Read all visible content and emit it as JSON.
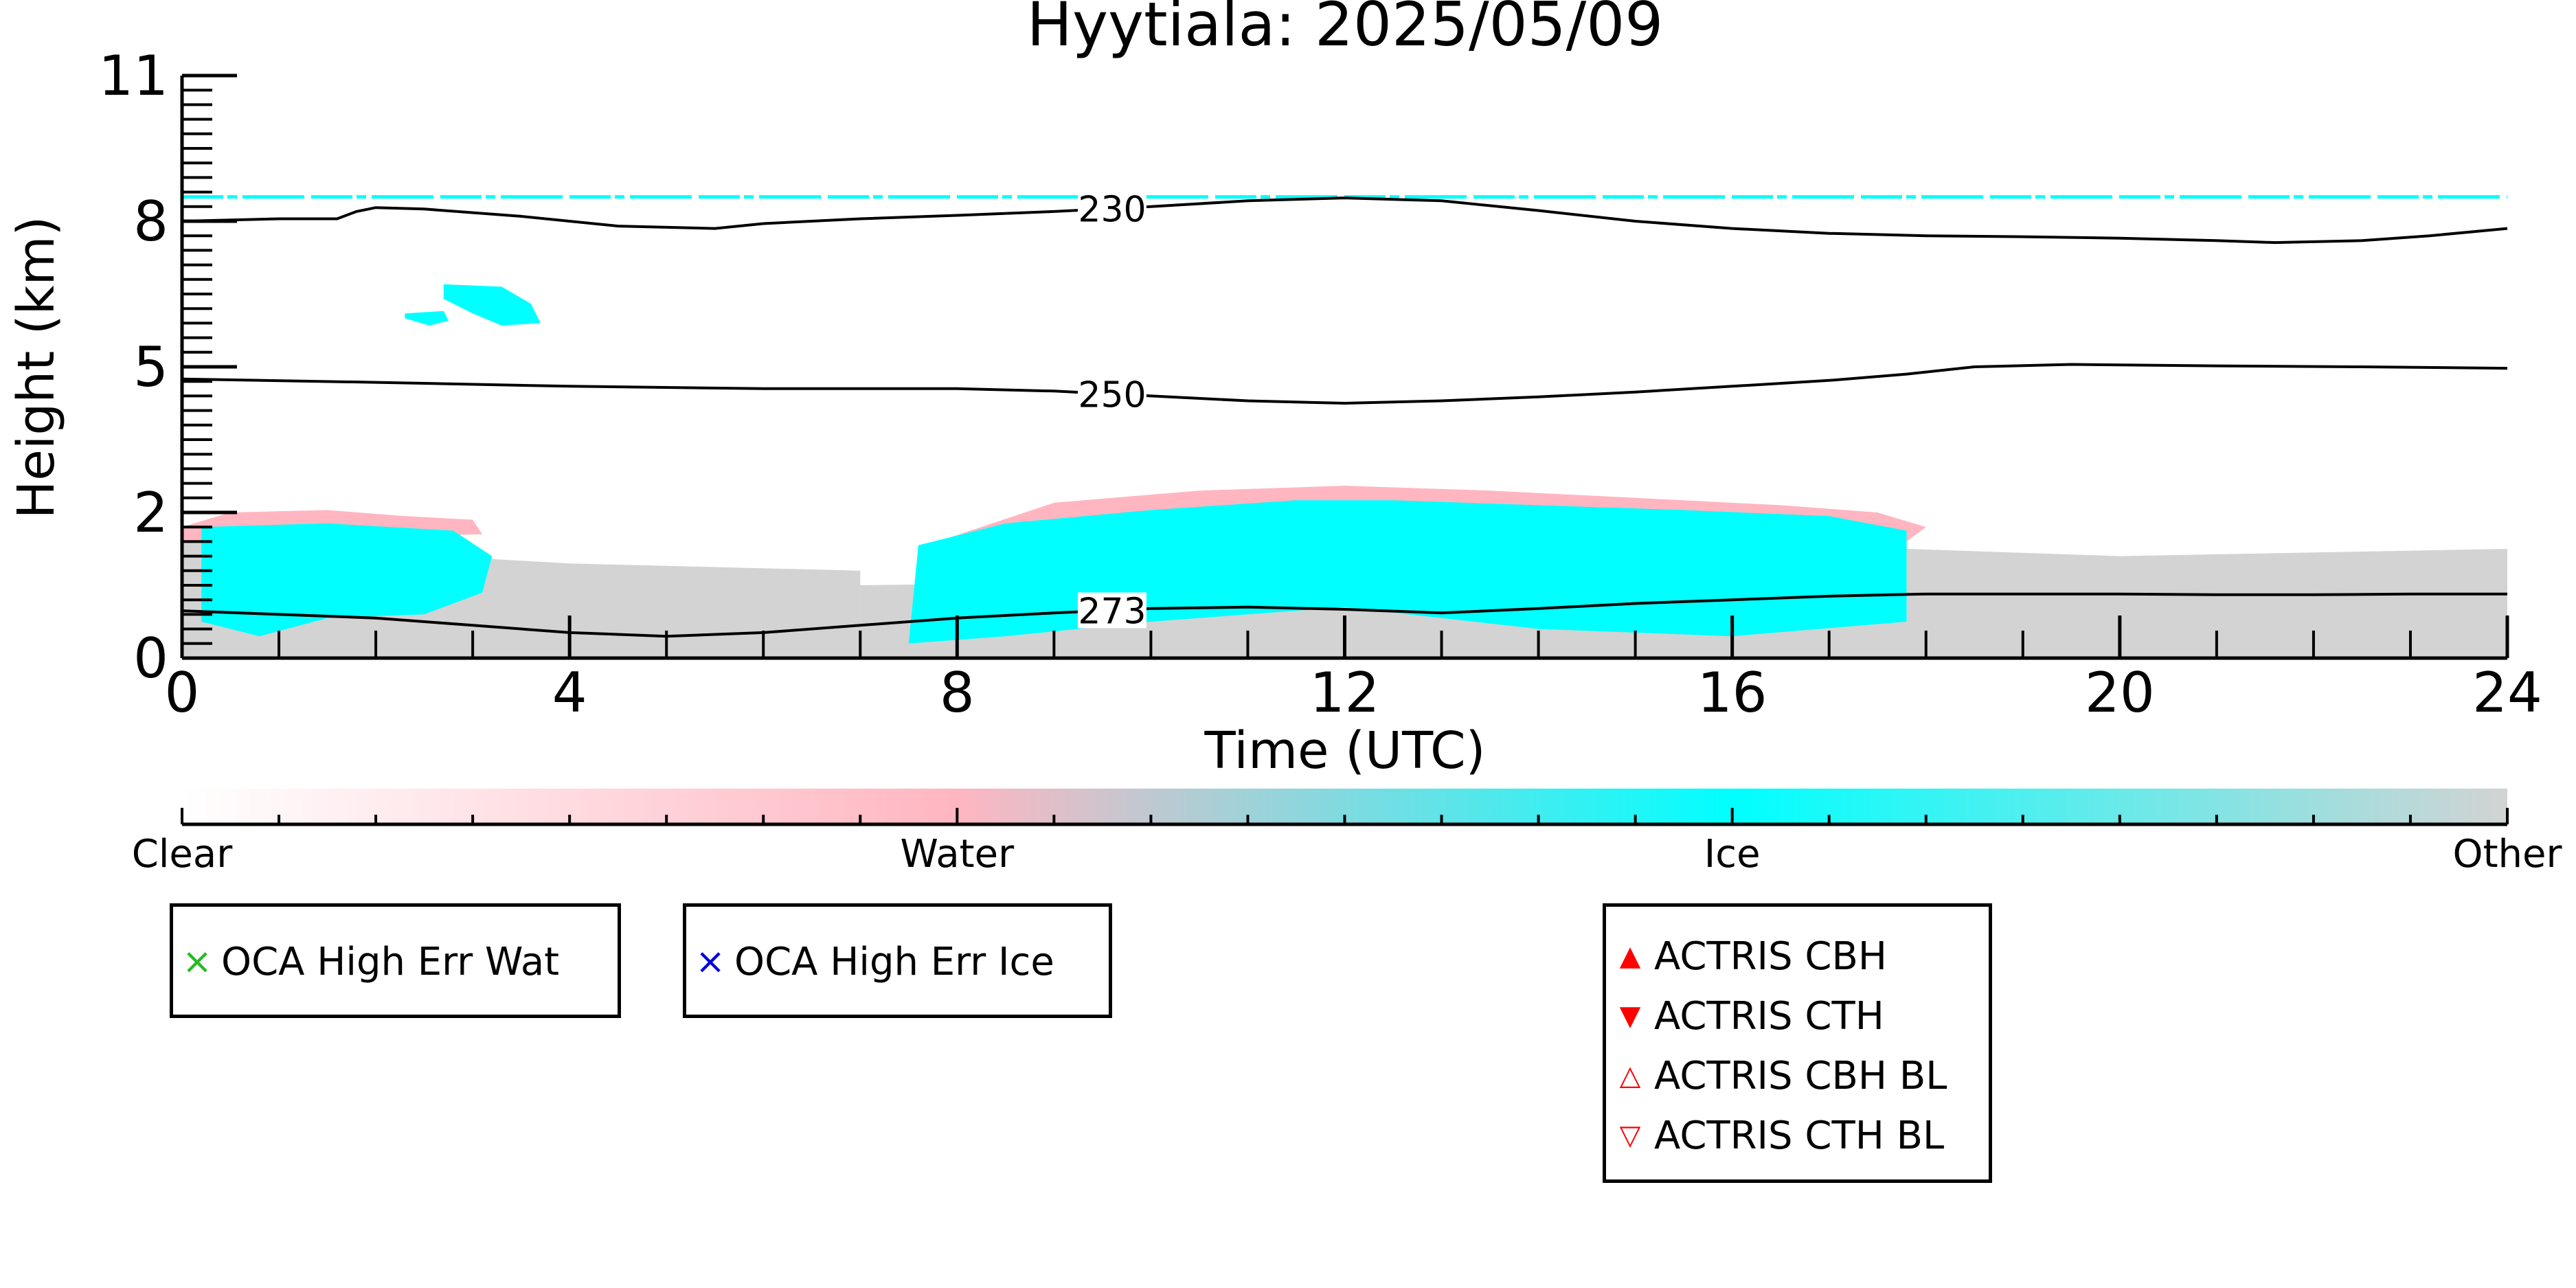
{
  "chart_data": {
    "type": "heatmap",
    "title": "Hyytiala: 2025/05/09",
    "xlabel": "Time (UTC)",
    "ylabel": "Height (km)",
    "xlim": [
      0,
      24
    ],
    "ylim": [
      0,
      11
    ],
    "x_ticks": [
      0,
      4,
      8,
      12,
      16,
      20,
      24
    ],
    "y_ticks": [
      {
        "value": 0,
        "label": "0"
      },
      {
        "value": 2,
        "label": "2"
      },
      {
        "value": 5,
        "label": "5"
      },
      {
        "value": 8,
        "label": "8"
      },
      {
        "value": 11,
        "label": "11"
      }
    ],
    "y_scale_note": "non-linear axis (0,2,5,8,11 equally spaced)",
    "colorbar": {
      "labels": [
        "Clear",
        "Water",
        "Ice",
        "Other"
      ],
      "colors": [
        "#ffffff",
        "#ffb6c1",
        "#00ffff",
        "#d3d3d3"
      ]
    },
    "temperature_contours": [
      {
        "label": "230",
        "label_x": 9.6,
        "points": [
          [
            0,
            8.0
          ],
          [
            1.0,
            8.05
          ],
          [
            1.6,
            8.05
          ],
          [
            1.8,
            8.2
          ],
          [
            2.0,
            8.28
          ],
          [
            2.5,
            8.25
          ],
          [
            3.5,
            8.1
          ],
          [
            4.5,
            7.9
          ],
          [
            5.5,
            7.85
          ],
          [
            6.0,
            7.95
          ],
          [
            7.0,
            8.05
          ],
          [
            8.0,
            8.12
          ],
          [
            9.0,
            8.2
          ],
          [
            10.0,
            8.3
          ],
          [
            11.0,
            8.42
          ],
          [
            12.0,
            8.48
          ],
          [
            13.0,
            8.42
          ],
          [
            14.0,
            8.22
          ],
          [
            15.0,
            8.0
          ],
          [
            16.0,
            7.85
          ],
          [
            17.0,
            7.75
          ],
          [
            18.0,
            7.7
          ],
          [
            19.0,
            7.68
          ],
          [
            20.0,
            7.65
          ],
          [
            21.0,
            7.6
          ],
          [
            21.6,
            7.56
          ],
          [
            22.5,
            7.6
          ],
          [
            23.2,
            7.7
          ],
          [
            24,
            7.85
          ]
        ]
      },
      {
        "label": "250",
        "label_x": 9.6,
        "points": [
          [
            0,
            4.75
          ],
          [
            2,
            4.68
          ],
          [
            4,
            4.6
          ],
          [
            6,
            4.55
          ],
          [
            8,
            4.55
          ],
          [
            9,
            4.5
          ],
          [
            10,
            4.4
          ],
          [
            11,
            4.3
          ],
          [
            12,
            4.25
          ],
          [
            13,
            4.3
          ],
          [
            14,
            4.38
          ],
          [
            15,
            4.48
          ],
          [
            16,
            4.6
          ],
          [
            17,
            4.72
          ],
          [
            17.8,
            4.85
          ],
          [
            18.5,
            5.0
          ],
          [
            19.5,
            5.05
          ],
          [
            21,
            5.02
          ],
          [
            22.5,
            5.0
          ],
          [
            24,
            4.97
          ]
        ]
      },
      {
        "label": "273",
        "label_x": 9.6,
        "points": [
          [
            0,
            0.65
          ],
          [
            1,
            0.6
          ],
          [
            2,
            0.55
          ],
          [
            3,
            0.45
          ],
          [
            4,
            0.35
          ],
          [
            5,
            0.3
          ],
          [
            6,
            0.35
          ],
          [
            7,
            0.45
          ],
          [
            8,
            0.55
          ],
          [
            9,
            0.62
          ],
          [
            10,
            0.68
          ],
          [
            11,
            0.7
          ],
          [
            12,
            0.67
          ],
          [
            13,
            0.62
          ],
          [
            14,
            0.68
          ],
          [
            15,
            0.75
          ],
          [
            16,
            0.8
          ],
          [
            17,
            0.85
          ],
          [
            18,
            0.88
          ],
          [
            19,
            0.88
          ],
          [
            20,
            0.88
          ],
          [
            21,
            0.87
          ],
          [
            22,
            0.87
          ],
          [
            23,
            0.88
          ],
          [
            24,
            0.88
          ]
        ]
      }
    ],
    "regions": [
      {
        "class": "Other",
        "color": "#d3d3d3",
        "bounds": [
          [
            0,
            0
          ],
          [
            0,
            1.6
          ],
          [
            4,
            1.3
          ],
          [
            7,
            1.2
          ],
          [
            7,
            0
          ],
          [
            0,
            0
          ]
        ]
      },
      {
        "class": "Other",
        "color": "#d3d3d3",
        "bounds": [
          [
            17.8,
            0
          ],
          [
            17.8,
            1.5
          ],
          [
            20,
            1.4
          ],
          [
            24,
            1.5
          ],
          [
            24,
            0
          ]
        ]
      },
      {
        "class": "Other",
        "color": "#d3d3d3",
        "bounds": [
          [
            7,
            0
          ],
          [
            7,
            1.0
          ],
          [
            18,
            1.2
          ],
          [
            18,
            0
          ]
        ]
      },
      {
        "class": "Water",
        "color": "#ffb6c1",
        "bounds": [
          [
            0,
            1.8
          ],
          [
            0.5,
            2.0
          ],
          [
            1.5,
            2.05
          ],
          [
            2.3,
            1.95
          ],
          [
            3.0,
            1.9
          ],
          [
            3.1,
            1.7
          ],
          [
            0,
            1.6
          ]
        ]
      },
      {
        "class": "Water",
        "color": "#ffb6c1",
        "bounds": [
          [
            7.8,
            1.6
          ],
          [
            9,
            2.2
          ],
          [
            10.5,
            2.45
          ],
          [
            12,
            2.55
          ],
          [
            13.5,
            2.45
          ],
          [
            15,
            2.3
          ],
          [
            16.5,
            2.15
          ],
          [
            17.5,
            2.0
          ],
          [
            18,
            1.8
          ],
          [
            17.8,
            1.6
          ]
        ]
      },
      {
        "class": "Ice",
        "color": "#00ffff",
        "bounds": [
          [
            0.2,
            0.5
          ],
          [
            0.2,
            1.8
          ],
          [
            1.5,
            1.85
          ],
          [
            2.8,
            1.75
          ],
          [
            3.2,
            1.4
          ],
          [
            3.1,
            0.9
          ],
          [
            2.5,
            0.6
          ],
          [
            1.5,
            0.55
          ],
          [
            0.8,
            0.3
          ],
          [
            0.2,
            0.5
          ]
        ]
      },
      {
        "class": "Ice",
        "color": "#00ffff",
        "bounds": [
          [
            7.5,
            0.2
          ],
          [
            7.6,
            1.55
          ],
          [
            8.5,
            1.85
          ],
          [
            10,
            2.05
          ],
          [
            11.5,
            2.25
          ],
          [
            12.5,
            2.25
          ],
          [
            14,
            2.15
          ],
          [
            15.5,
            2.05
          ],
          [
            17,
            1.95
          ],
          [
            17.8,
            1.75
          ],
          [
            17.8,
            0.5
          ],
          [
            16,
            0.3
          ],
          [
            14,
            0.4
          ],
          [
            12,
            0.7
          ],
          [
            10,
            0.5
          ],
          [
            8.5,
            0.3
          ],
          [
            7.5,
            0.2
          ]
        ]
      },
      {
        "class": "Ice",
        "color": "#00ffff",
        "bounds": [
          [
            2.7,
            6.7
          ],
          [
            3.3,
            6.65
          ],
          [
            3.6,
            6.3
          ],
          [
            3.7,
            5.9
          ],
          [
            3.3,
            5.85
          ],
          [
            3.0,
            6.1
          ],
          [
            2.7,
            6.4
          ]
        ]
      },
      {
        "class": "Ice",
        "color": "#00ffff",
        "bounds": [
          [
            2.3,
            6.1
          ],
          [
            2.7,
            6.15
          ],
          [
            2.75,
            5.95
          ],
          [
            2.55,
            5.85
          ],
          [
            2.3,
            6.0
          ]
        ]
      },
      {
        "class": "Ice",
        "color": "#00ffff",
        "bounds": [
          [
            9.35,
            4.65
          ],
          [
            9.7,
            4.55
          ],
          [
            9.9,
            4.3
          ],
          [
            9.55,
            4.25
          ],
          [
            9.3,
            4.45
          ]
        ]
      }
    ],
    "thin_ice_layer": {
      "class": "Ice",
      "color": "#00ffff",
      "height_km": 8.5,
      "from": 0,
      "to": 24
    },
    "legend_top_left": [
      {
        "marker": "×",
        "color": "#22bb22",
        "label": "OCA High Err Wat"
      }
    ],
    "legend_top_mid": [
      {
        "marker": "×",
        "color": "#0000dd",
        "label": "OCA High Err Ice"
      }
    ],
    "legend_actris": [
      {
        "marker": "▲",
        "color": "#ff0000",
        "label": "ACTRIS CBH"
      },
      {
        "marker": "▼",
        "color": "#ff0000",
        "label": "ACTRIS CTH"
      },
      {
        "marker": "△",
        "color": "#ff0000",
        "label": "ACTRIS CBH BL"
      },
      {
        "marker": "▽",
        "color": "#ff0000",
        "label": "ACTRIS CTH BL"
      }
    ]
  }
}
